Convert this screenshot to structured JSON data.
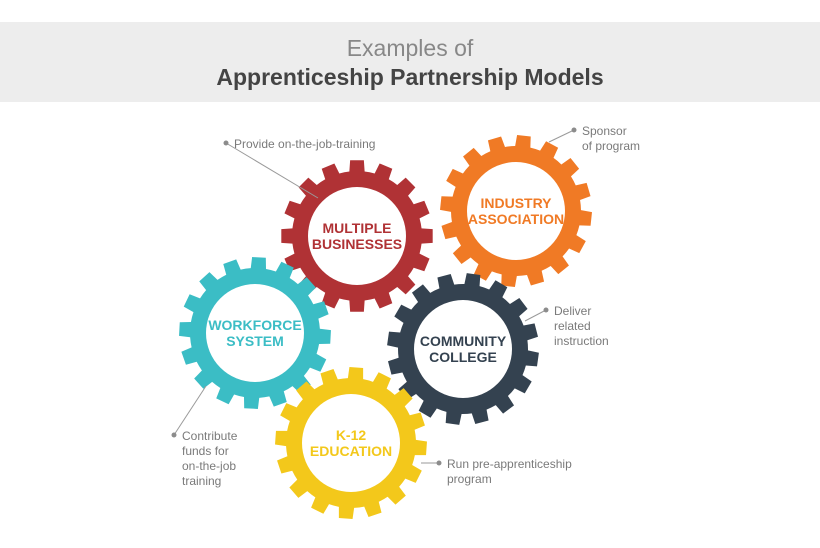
{
  "header": {
    "title_line1": "Examples of",
    "title_line2": "Apprenticeship Partnership Models"
  },
  "gears": [
    {
      "id": "multiple-businesses",
      "lines": [
        "MULTIPLE",
        "BUSINESSES"
      ],
      "color": "#b03235"
    },
    {
      "id": "industry-association",
      "lines": [
        "INDUSTRY",
        "ASSOCIATION"
      ],
      "color": "#f07a25"
    },
    {
      "id": "workforce-system",
      "lines": [
        "WORKFORCE",
        "SYSTEM"
      ],
      "color": "#3bbdc5"
    },
    {
      "id": "community-college",
      "lines": [
        "COMMUNITY",
        "COLLEGE"
      ],
      "color": "#344250"
    },
    {
      "id": "k12-education",
      "lines": [
        "K-12",
        "EDUCATION"
      ],
      "color": "#f3c81b"
    }
  ],
  "annotations": [
    {
      "id": "provide-otj",
      "lines": [
        "Provide on-the-job-training"
      ]
    },
    {
      "id": "sponsor",
      "lines": [
        "Sponsor",
        "of program"
      ]
    },
    {
      "id": "deliver",
      "lines": [
        "Deliver",
        "related",
        "instruction"
      ]
    },
    {
      "id": "contribute",
      "lines": [
        "Contribute",
        "funds for",
        "on-the-job",
        "training"
      ]
    },
    {
      "id": "pre-apprenticeship",
      "lines": [
        "Run pre-apprenticeship",
        "program"
      ]
    }
  ]
}
